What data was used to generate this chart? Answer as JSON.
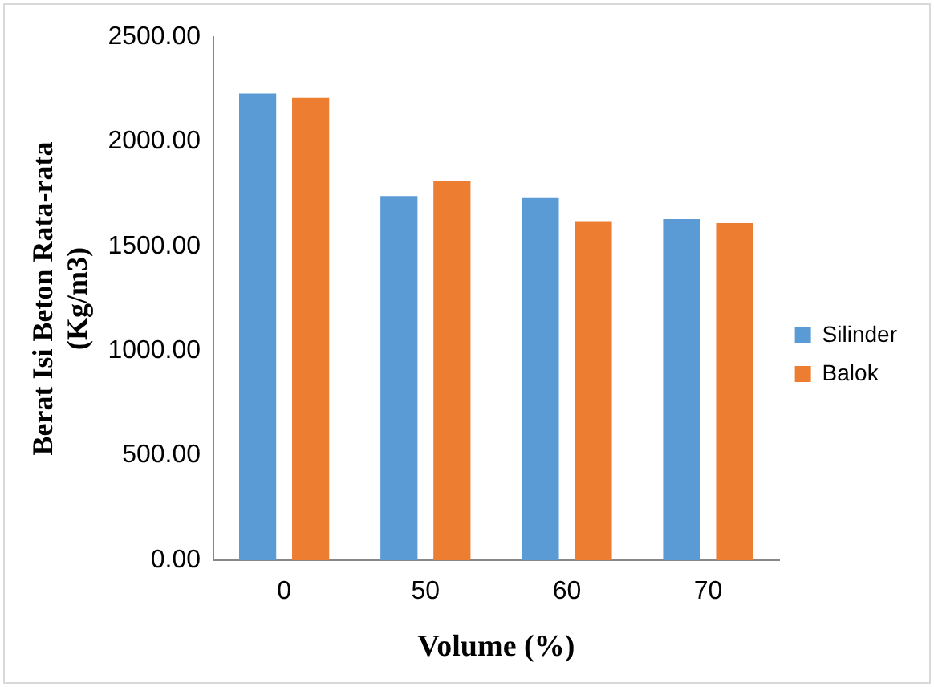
{
  "chart_data": {
    "type": "bar",
    "categories": [
      "0",
      "50",
      "60",
      "70"
    ],
    "series": [
      {
        "name": "Silinder",
        "color": "#5b9bd5",
        "values": [
          2230,
          1740,
          1730,
          1630
        ]
      },
      {
        "name": "Balok",
        "color": "#ed7d31",
        "values": [
          2210,
          1810,
          1620,
          1610
        ]
      }
    ],
    "xlabel": "Volume (%)",
    "ylabel": "Berat Isi Beton Rata-rata\n(Kg/m3)",
    "ylim": [
      0,
      2500
    ],
    "yticks": [
      {
        "value": 0,
        "label": "0.00"
      },
      {
        "value": 500,
        "label": "500.00"
      },
      {
        "value": 1000,
        "label": "1000.00"
      },
      {
        "value": 1500,
        "label": "1500.00"
      },
      {
        "value": 2000,
        "label": "2000.00"
      },
      {
        "value": 2500,
        "label": "2500.00"
      }
    ],
    "grid": false,
    "legend": "right"
  }
}
